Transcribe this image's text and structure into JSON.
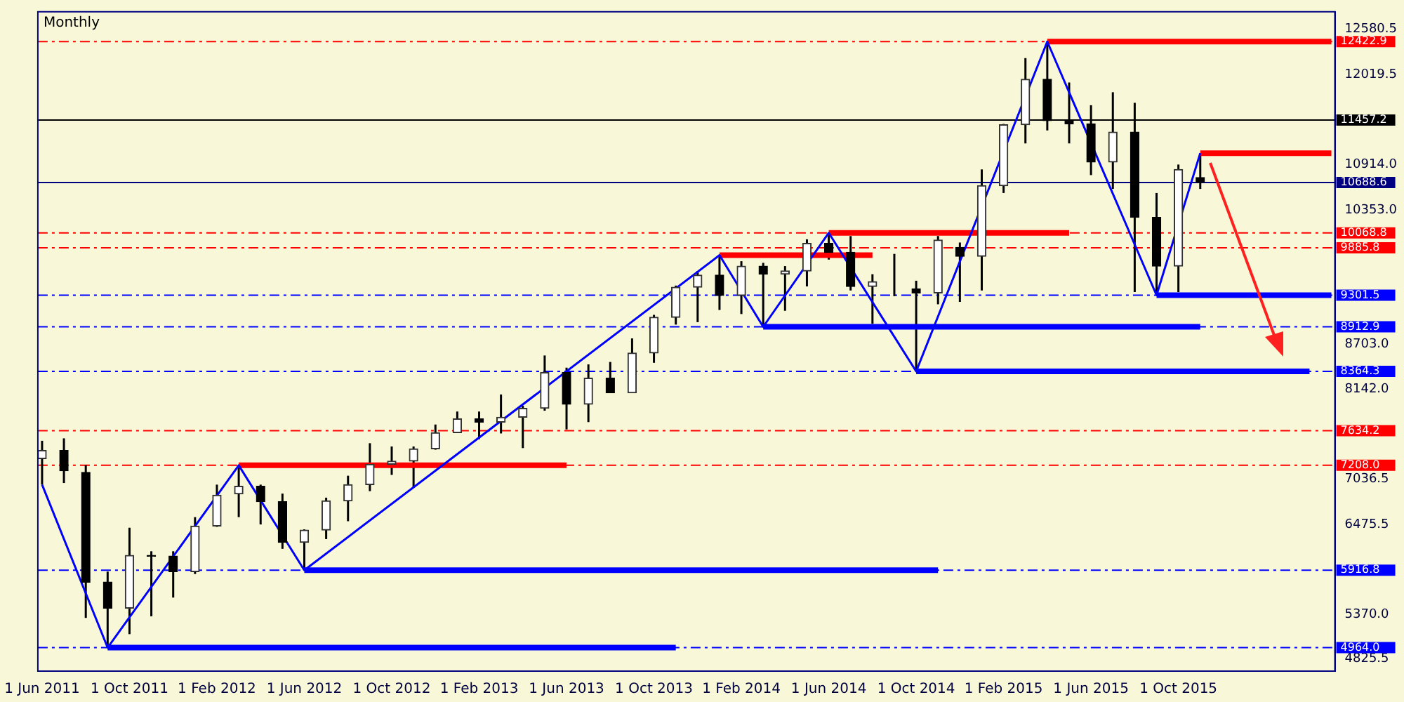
{
  "chart_data": {
    "type": "candlestick",
    "title": "Monthly",
    "x": [
      "2011-06",
      "2011-07",
      "2011-08",
      "2011-09",
      "2011-10",
      "2011-11",
      "2011-12",
      "2012-01",
      "2012-02",
      "2012-03",
      "2012-04",
      "2012-05",
      "2012-06",
      "2012-07",
      "2012-08",
      "2012-09",
      "2012-10",
      "2012-11",
      "2012-12",
      "2013-01",
      "2013-02",
      "2013-03",
      "2013-04",
      "2013-05",
      "2013-06",
      "2013-07",
      "2013-08",
      "2013-09",
      "2013-10",
      "2013-11",
      "2013-12",
      "2014-01",
      "2014-02",
      "2014-03",
      "2014-04",
      "2014-05",
      "2014-06",
      "2014-07",
      "2014-08",
      "2014-09",
      "2014-10",
      "2014-11",
      "2014-12",
      "2015-01",
      "2015-02",
      "2015-03",
      "2015-04",
      "2015-05",
      "2015-06",
      "2015-07",
      "2015-08",
      "2015-09",
      "2015-10",
      "2015-11"
    ],
    "ohlc": [
      [
        7290,
        7510,
        6970,
        7390
      ],
      [
        7390,
        7540,
        6990,
        7140
      ],
      [
        7120,
        7210,
        5330,
        5770
      ],
      [
        5770,
        5900,
        4964,
        5450
      ],
      [
        5450,
        6440,
        5130,
        6100
      ],
      [
        6100,
        6150,
        5350,
        6090
      ],
      [
        6090,
        6150,
        5580,
        5900
      ],
      [
        5900,
        6570,
        5870,
        6460
      ],
      [
        6460,
        6970,
        6450,
        6840
      ],
      [
        6855,
        7208,
        6570,
        6950
      ],
      [
        6950,
        6970,
        6480,
        6760
      ],
      [
        6760,
        6860,
        6180,
        6260
      ],
      [
        6260,
        6420,
        5917,
        6410
      ],
      [
        6410,
        6810,
        6300,
        6770
      ],
      [
        6770,
        7080,
        6520,
        6970
      ],
      [
        6970,
        7480,
        6890,
        7220
      ],
      [
        7220,
        7440,
        7090,
        7260
      ],
      [
        7260,
        7440,
        6930,
        7410
      ],
      [
        7410,
        7710,
        7400,
        7610
      ],
      [
        7610,
        7870,
        7610,
        7780
      ],
      [
        7780,
        7870,
        7530,
        7740
      ],
      [
        7740,
        8080,
        7600,
        7800
      ],
      [
        7800,
        7940,
        7420,
        7910
      ],
      [
        7910,
        8560,
        7880,
        8350
      ],
      [
        8350,
        8410,
        7650,
        7960
      ],
      [
        7960,
        8450,
        7740,
        8280
      ],
      [
        8280,
        8480,
        8100,
        8100
      ],
      [
        8100,
        8770,
        8100,
        8590
      ],
      [
        8590,
        9060,
        8470,
        9030
      ],
      [
        9030,
        9420,
        8940,
        9400
      ],
      [
        9400,
        9600,
        8970,
        9550
      ],
      [
        9550,
        9794,
        9120,
        9300
      ],
      [
        9300,
        9720,
        9070,
        9660
      ],
      [
        9660,
        9700,
        8913,
        9560
      ],
      [
        9560,
        9660,
        9110,
        9600
      ],
      [
        9600,
        9990,
        9410,
        9940
      ],
      [
        9940,
        10069,
        9740,
        9830
      ],
      [
        9830,
        10030,
        9360,
        9410
      ],
      [
        9410,
        9560,
        8950,
        9470
      ],
      [
        9470,
        9810,
        9290,
        9470
      ],
      [
        9380,
        9480,
        8364,
        9330
      ],
      [
        9330,
        10030,
        9190,
        9980
      ],
      [
        9890,
        9950,
        9220,
        9780
      ],
      [
        9780,
        10850,
        9360,
        10650
      ],
      [
        10650,
        11410,
        10560,
        11400
      ],
      [
        11400,
        12220,
        11170,
        11960
      ],
      [
        11960,
        12423,
        11330,
        11450
      ],
      [
        11450,
        11920,
        11170,
        11410
      ],
      [
        11410,
        11640,
        10780,
        10940
      ],
      [
        10940,
        11800,
        10610,
        11310
      ],
      [
        11310,
        11670,
        9340,
        10260
      ],
      [
        10260,
        10560,
        9302,
        9660
      ],
      [
        9660,
        10910,
        9340,
        10850
      ],
      [
        10750,
        11050,
        10610,
        10689
      ]
    ],
    "series": [
      {
        "type": "line",
        "color": "#0000ff",
        "x": [
          "2011-06",
          "2011-09",
          "2012-03",
          "2012-06",
          "2014-01",
          "2014-03",
          "2014-06",
          "2014-10",
          "2015-04",
          "2015-09",
          "2015-11"
        ],
        "values": [
          6970,
          4964,
          7208,
          5917,
          9794,
          8913,
          10069,
          8364,
          12423,
          9302,
          11050
        ]
      },
      {
        "type": "line",
        "color": "#0000ff",
        "x": [
          "2011-09",
          "2013-11"
        ],
        "values": [
          4964,
          4964
        ]
      },
      {
        "type": "line",
        "color": "#ff0000",
        "x": [
          "2012-03",
          "2013-06"
        ],
        "values": [
          7208,
          7208
        ]
      },
      {
        "type": "line",
        "color": "#0000ff",
        "x": [
          "2012-06",
          "2014-11"
        ],
        "values": [
          5917,
          5917
        ]
      },
      {
        "type": "line",
        "color": "#ff0000",
        "x": [
          "2014-01",
          "2014-08"
        ],
        "values": [
          9794,
          9794
        ]
      },
      {
        "type": "line",
        "color": "#0000ff",
        "x": [
          "2014-03",
          "2015-11"
        ],
        "values": [
          8913,
          8913
        ]
      },
      {
        "type": "line",
        "color": "#ff0000",
        "x": [
          "2014-06",
          "2015-05"
        ],
        "values": [
          10069,
          10069
        ]
      },
      {
        "type": "line",
        "color": "#0000ff",
        "x": [
          "2014-10",
          "2016-04"
        ],
        "values": [
          8364,
          8364
        ]
      },
      {
        "type": "line",
        "color": "#ff0000",
        "x": [
          "2015-04",
          "2016-05"
        ],
        "values": [
          12423,
          12423
        ]
      },
      {
        "type": "line",
        "color": "#0000ff",
        "x": [
          "2015-09",
          "2016-05"
        ],
        "values": [
          9302,
          9302
        ]
      },
      {
        "type": "line",
        "color": "#ff0000",
        "x": [
          "2015-11",
          "2016-05"
        ],
        "values": [
          11050,
          11050
        ]
      }
    ],
    "ref_lines": [
      {
        "axis": "y",
        "value": 12422.9,
        "label": "12422.9",
        "color": "#ff0000",
        "line_style": "dashed"
      },
      {
        "axis": "y",
        "value": 11457.2,
        "label": "11457.2",
        "color": "#000000",
        "line_style": "solid"
      },
      {
        "axis": "y",
        "value": 10688.6,
        "label": "10688.6",
        "color": "#000080",
        "line_style": "solid"
      },
      {
        "axis": "y",
        "value": 10068.8,
        "label": "10068.8",
        "color": "#ff0000",
        "line_style": "dashed"
      },
      {
        "axis": "y",
        "value": 9885.8,
        "label": "9885.8",
        "color": "#ff0000",
        "line_style": "dashed"
      },
      {
        "axis": "y",
        "value": 9301.5,
        "label": "9301.5",
        "color": "#0000ff",
        "line_style": "dashed"
      },
      {
        "axis": "y",
        "value": 8912.9,
        "label": "8912.9",
        "color": "#0000ff",
        "line_style": "dashed"
      },
      {
        "axis": "y",
        "value": 8364.3,
        "label": "8364.3",
        "color": "#0000ff",
        "line_style": "dashed"
      },
      {
        "axis": "y",
        "value": 7634.2,
        "label": "7634.2",
        "color": "#ff0000",
        "line_style": "dashed"
      },
      {
        "axis": "y",
        "value": 7208.0,
        "label": "7208.0",
        "color": "#ff0000",
        "line_style": "dashed"
      },
      {
        "axis": "y",
        "value": 5916.8,
        "label": "5916.8",
        "color": "#0000ff",
        "line_style": "dashed"
      },
      {
        "axis": "y",
        "value": 4964.0,
        "label": "4964.0",
        "color": "#0000ff",
        "line_style": "dashed"
      }
    ],
    "xlim": [
      "2011-05-26",
      "2016-05-06"
    ],
    "xticks": [
      {
        "value": "2011-06",
        "label": "1 Jun 2011"
      },
      {
        "value": "2011-10",
        "label": "1 Oct 2011"
      },
      {
        "value": "2012-02",
        "label": "1 Feb 2012"
      },
      {
        "value": "2012-06",
        "label": "1 Jun 2012"
      },
      {
        "value": "2012-10",
        "label": "1 Oct 2012"
      },
      {
        "value": "2013-02",
        "label": "1 Feb 2013"
      },
      {
        "value": "2013-06",
        "label": "1 Jun 2013"
      },
      {
        "value": "2013-10",
        "label": "1 Oct 2013"
      },
      {
        "value": "2014-02",
        "label": "1 Feb 2014"
      },
      {
        "value": "2014-06",
        "label": "1 Jun 2014"
      },
      {
        "value": "2014-10",
        "label": "1 Oct 2014"
      },
      {
        "value": "2015-02",
        "label": "1 Feb 2015"
      },
      {
        "value": "2015-06",
        "label": "1 Jun 2015"
      },
      {
        "value": "2015-10",
        "label": "1 Oct 2015"
      }
    ],
    "ylim": [
      4675,
      12790
    ],
    "yticks": [
      {
        "value": 12580.5,
        "label": "12580.5"
      },
      {
        "value": 12019.5,
        "label": "12019.5"
      },
      {
        "value": 10914.0,
        "label": "10914.0"
      },
      {
        "value": 10353.0,
        "label": "10353.0"
      },
      {
        "value": 8703.0,
        "label": "8703.0"
      },
      {
        "value": 8142.0,
        "label": "8142.0"
      },
      {
        "value": 7036.5,
        "label": "7036.5"
      },
      {
        "value": 6475.5,
        "label": "6475.5"
      },
      {
        "value": 5370.0,
        "label": "5370.0"
      },
      {
        "value": 4825.5,
        "label": "4825.5"
      }
    ],
    "grid": false,
    "legend": false
  }
}
